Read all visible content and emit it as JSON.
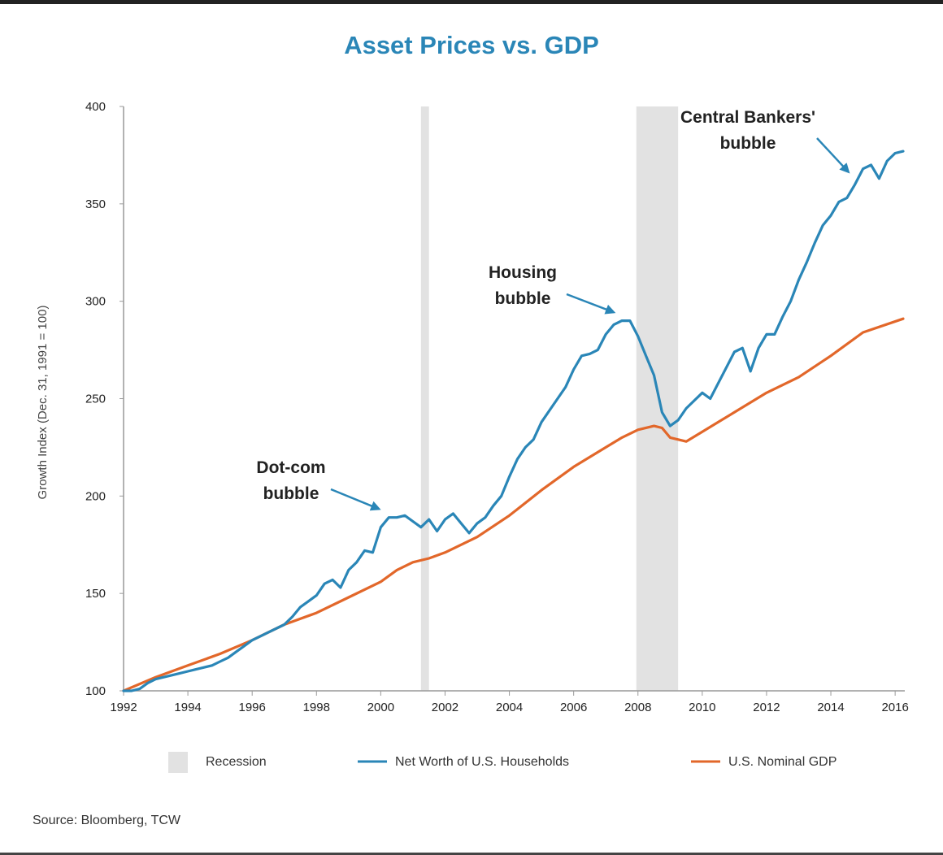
{
  "chart_data": {
    "type": "line",
    "title": "Asset Prices vs. GDP",
    "ylabel": "Growth Index (Dec. 31, 1991 = 100)",
    "xlabel": "",
    "xlim": [
      1992,
      2016.3
    ],
    "ylim": [
      100,
      400
    ],
    "x_ticks": [
      1992,
      1994,
      1996,
      1998,
      2000,
      2002,
      2004,
      2006,
      2008,
      2010,
      2012,
      2014,
      2016
    ],
    "y_ticks": [
      100,
      150,
      200,
      250,
      300,
      350,
      400
    ],
    "recessions": [
      [
        2001.25,
        2001.5
      ],
      [
        2007.95,
        2009.25
      ]
    ],
    "series": [
      {
        "name": "Net Worth of U.S. Households",
        "color": "#2a86b7",
        "x": [
          1992,
          1992.25,
          1992.5,
          1992.75,
          1993,
          1993.25,
          1993.5,
          1993.75,
          1994,
          1994.25,
          1994.5,
          1994.75,
          1995,
          1995.25,
          1995.5,
          1995.75,
          1996,
          1996.25,
          1996.5,
          1996.75,
          1997,
          1997.25,
          1997.5,
          1997.75,
          1998,
          1998.25,
          1998.5,
          1998.75,
          1999,
          1999.25,
          1999.5,
          1999.75,
          2000,
          2000.25,
          2000.5,
          2000.75,
          2001,
          2001.25,
          2001.5,
          2001.75,
          2002,
          2002.25,
          2002.5,
          2002.75,
          2003,
          2003.25,
          2003.5,
          2003.75,
          2004,
          2004.25,
          2004.5,
          2004.75,
          2005,
          2005.25,
          2005.5,
          2005.75,
          2006,
          2006.25,
          2006.5,
          2006.75,
          2007,
          2007.25,
          2007.5,
          2007.75,
          2008,
          2008.25,
          2008.5,
          2008.75,
          2009,
          2009.25,
          2009.5,
          2009.75,
          2010,
          2010.25,
          2010.5,
          2010.75,
          2011,
          2011.25,
          2011.5,
          2011.75,
          2012,
          2012.25,
          2012.5,
          2012.75,
          2013,
          2013.25,
          2013.5,
          2013.75,
          2014,
          2014.25,
          2014.5,
          2014.75,
          2015,
          2015.25,
          2015.5,
          2015.75,
          2016,
          2016.25
        ],
        "values": [
          100,
          100,
          101,
          104,
          106,
          107,
          108,
          109,
          110,
          111,
          112,
          113,
          115,
          117,
          120,
          123,
          126,
          128,
          130,
          132,
          134,
          138,
          143,
          146,
          149,
          155,
          157,
          153,
          162,
          166,
          172,
          171,
          184,
          189,
          189,
          190,
          187,
          184,
          188,
          182,
          188,
          191,
          186,
          181,
          186,
          189,
          195,
          200,
          210,
          219,
          225,
          229,
          238,
          244,
          250,
          256,
          265,
          272,
          273,
          275,
          283,
          288,
          290,
          290,
          282,
          272,
          262,
          243,
          236,
          239,
          245,
          249,
          253,
          250,
          258,
          266,
          274,
          276,
          264,
          276,
          283,
          283,
          292,
          300,
          311,
          320,
          330,
          339,
          344,
          351,
          353,
          360,
          368,
          370,
          363,
          372,
          376,
          377
        ]
      },
      {
        "name": "U.S. Nominal GDP",
        "color": "#e2672a",
        "x": [
          1992,
          1993,
          1994,
          1995,
          1996,
          1997,
          1998,
          1999,
          2000,
          2000.5,
          2001,
          2001.5,
          2002,
          2003,
          2004,
          2005,
          2006,
          2007,
          2007.5,
          2008,
          2008.5,
          2008.75,
          2009,
          2009.5,
          2010,
          2011,
          2012,
          2013,
          2014,
          2015,
          2016.25
        ],
        "values": [
          100,
          107,
          113,
          119,
          126,
          134,
          140,
          148,
          156,
          162,
          166,
          168,
          171,
          179,
          190,
          203,
          215,
          225,
          230,
          234,
          236,
          235,
          230,
          228,
          233,
          243,
          253,
          261,
          272,
          284,
          291
        ]
      }
    ],
    "annotations": [
      {
        "lines": [
          "Dot-com",
          "bubble"
        ],
        "points_to": [
          2000.1,
          190
        ]
      },
      {
        "lines": [
          "Housing",
          "bubble"
        ],
        "points_to": [
          2007.4,
          291
        ]
      },
      {
        "lines": [
          "Central Bankers'",
          "bubble"
        ],
        "points_to": [
          2014.7,
          363
        ]
      }
    ],
    "legend": {
      "position": "bottom",
      "items": [
        {
          "label": "Recession",
          "kind": "patch",
          "color": "#e2e2e2"
        },
        {
          "label": "Net Worth of U.S. Households",
          "kind": "line",
          "color": "#2a86b7"
        },
        {
          "label": "U.S. Nominal GDP",
          "kind": "line",
          "color": "#e2672a"
        }
      ]
    },
    "source": "Source: Bloomberg, TCW"
  }
}
